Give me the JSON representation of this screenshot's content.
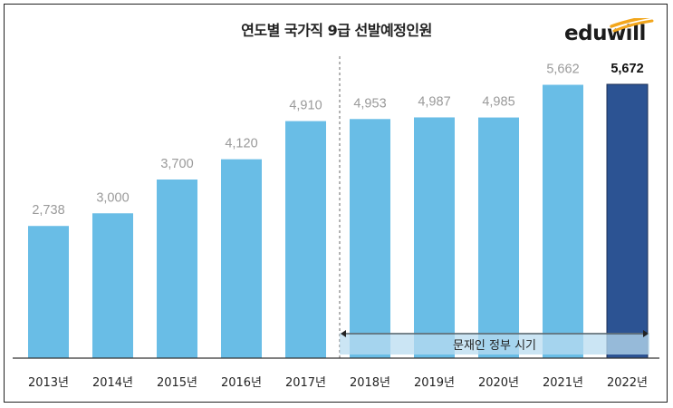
{
  "chart_data": {
    "type": "bar",
    "title": "연도별 국가직 9급 선발예정인원",
    "categories": [
      "2013년",
      "2014년",
      "2015년",
      "2016년",
      "2017년",
      "2018년",
      "2019년",
      "2020년",
      "2021년",
      "2022년"
    ],
    "values": [
      2738,
      3000,
      3700,
      4120,
      4910,
      4953,
      4987,
      4985,
      5662,
      5672
    ],
    "value_labels": [
      "2,738",
      "3,000",
      "3,700",
      "4,120",
      "4,910",
      "4,953",
      "4,987",
      "4,985",
      "5,662",
      "5,672"
    ],
    "highlight_index": 9,
    "annotation": {
      "label": "문재인 정부 시기",
      "start_category": "2018년",
      "end_category": "2022년"
    },
    "colors": {
      "bar": "#69bde6",
      "highlight": "#2c5393",
      "annotation_band": "#b9dcf0",
      "divider": "#9a9a9a"
    },
    "ylim": [
      0,
      5800
    ],
    "grid": false,
    "legend": "none"
  },
  "brand": {
    "logo_text": "eduwill"
  }
}
